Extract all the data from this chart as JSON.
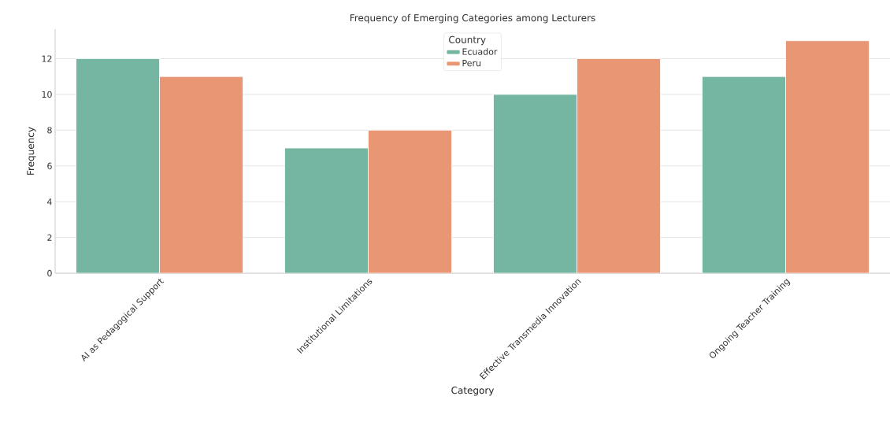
{
  "chart_data": {
    "type": "bar",
    "title": "Frequency of Emerging Categories among Lecturers",
    "xlabel": "Category",
    "ylabel": "Frequency",
    "legend_title": "Country",
    "categories": [
      "AI as Pedagogical Support",
      "Institutional Limitations",
      "Effective Transmedia Innovation",
      "Ongoing Teacher Training"
    ],
    "series": [
      {
        "name": "Ecuador",
        "color": "#74b6a1",
        "values": [
          12,
          7,
          10,
          11
        ]
      },
      {
        "name": "Peru",
        "color": "#e89674",
        "values": [
          11,
          8,
          12,
          13
        ]
      }
    ],
    "ylim": [
      0,
      13.65
    ],
    "yticks": [
      0,
      2,
      4,
      6,
      8,
      10,
      12
    ],
    "grid": "y",
    "legend": "top"
  }
}
